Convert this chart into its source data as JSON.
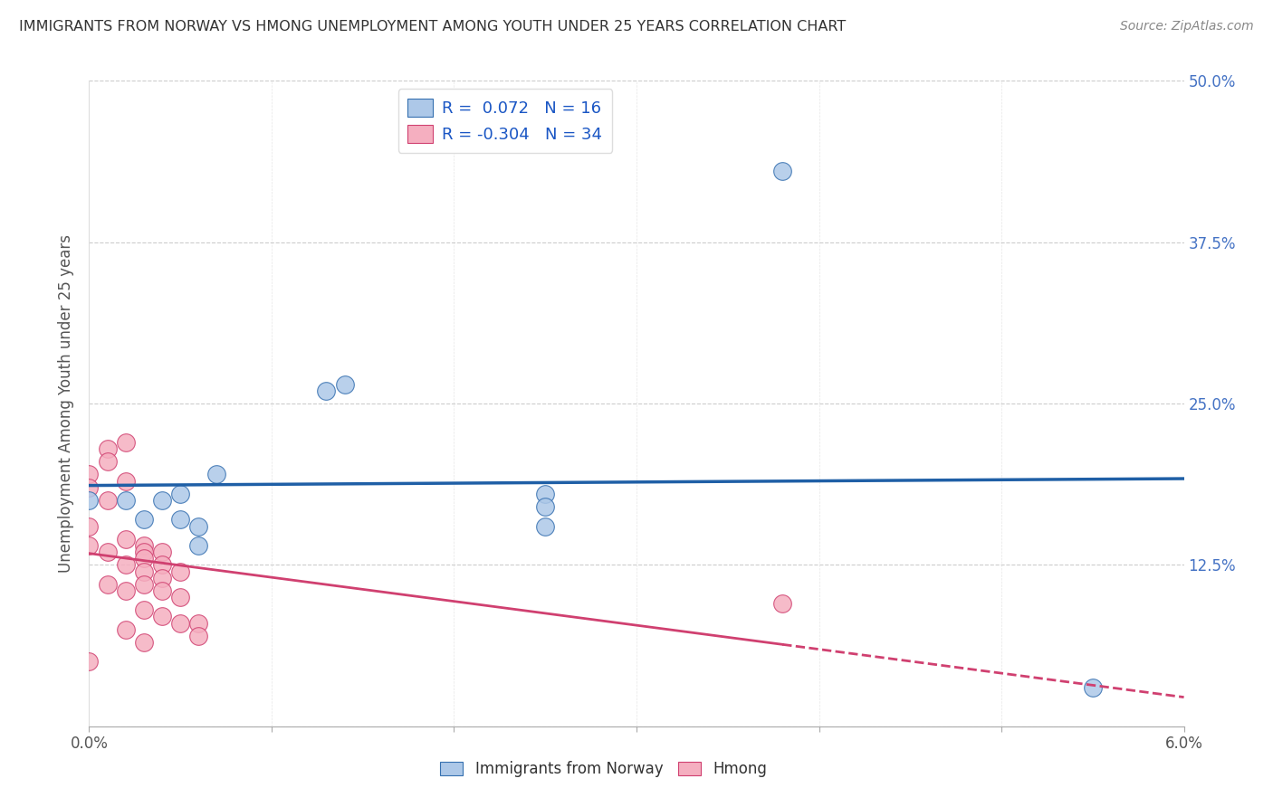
{
  "title": "IMMIGRANTS FROM NORWAY VS HMONG UNEMPLOYMENT AMONG YOUTH UNDER 25 YEARS CORRELATION CHART",
  "source": "Source: ZipAtlas.com",
  "ylabel": "Unemployment Among Youth under 25 years",
  "xlim": [
    0.0,
    0.06
  ],
  "ylim": [
    0.0,
    0.5
  ],
  "xtick_positions": [
    0.0,
    0.01,
    0.02,
    0.03,
    0.04,
    0.05,
    0.06
  ],
  "xtick_labels_visible": {
    "0.0": "0.0%",
    "6.0": "6.0%"
  },
  "yticks": [
    0.0,
    0.125,
    0.25,
    0.375,
    0.5
  ],
  "ytick_labels": [
    "",
    "12.5%",
    "25.0%",
    "37.5%",
    "50.0%"
  ],
  "norway_R": 0.072,
  "norway_N": 16,
  "hmong_R": -0.304,
  "hmong_N": 34,
  "legend_labels": [
    "Immigrants from Norway",
    "Hmong"
  ],
  "norway_color": "#adc8e8",
  "norway_edge_color": "#3670b0",
  "norway_line_color": "#1f5fa6",
  "hmong_color": "#f5afc0",
  "hmong_edge_color": "#d04070",
  "hmong_line_color": "#d04070",
  "norway_x": [
    0.0,
    0.002,
    0.003,
    0.004,
    0.005,
    0.005,
    0.006,
    0.006,
    0.007,
    0.013,
    0.014,
    0.025,
    0.025,
    0.025,
    0.038,
    0.055
  ],
  "norway_y": [
    0.175,
    0.175,
    0.16,
    0.175,
    0.16,
    0.18,
    0.14,
    0.155,
    0.195,
    0.26,
    0.265,
    0.18,
    0.17,
    0.155,
    0.43,
    0.03
  ],
  "hmong_x": [
    0.0,
    0.0,
    0.0,
    0.0,
    0.001,
    0.001,
    0.001,
    0.001,
    0.001,
    0.002,
    0.002,
    0.002,
    0.002,
    0.002,
    0.002,
    0.003,
    0.003,
    0.003,
    0.003,
    0.003,
    0.003,
    0.003,
    0.004,
    0.004,
    0.004,
    0.004,
    0.004,
    0.005,
    0.005,
    0.005,
    0.006,
    0.006,
    0.038,
    0.0
  ],
  "hmong_y": [
    0.195,
    0.185,
    0.155,
    0.14,
    0.215,
    0.205,
    0.175,
    0.135,
    0.11,
    0.22,
    0.19,
    0.145,
    0.125,
    0.105,
    0.075,
    0.14,
    0.135,
    0.13,
    0.12,
    0.11,
    0.09,
    0.065,
    0.135,
    0.125,
    0.115,
    0.105,
    0.085,
    0.12,
    0.1,
    0.08,
    0.08,
    0.07,
    0.095,
    0.05
  ],
  "background_color": "#ffffff",
  "grid_color": "#cccccc",
  "title_color": "#333333",
  "axis_label_color": "#555555",
  "right_tick_color": "#4472c4",
  "bottom_tick_color": "#555555",
  "legend_text_color": "#1a56c4"
}
